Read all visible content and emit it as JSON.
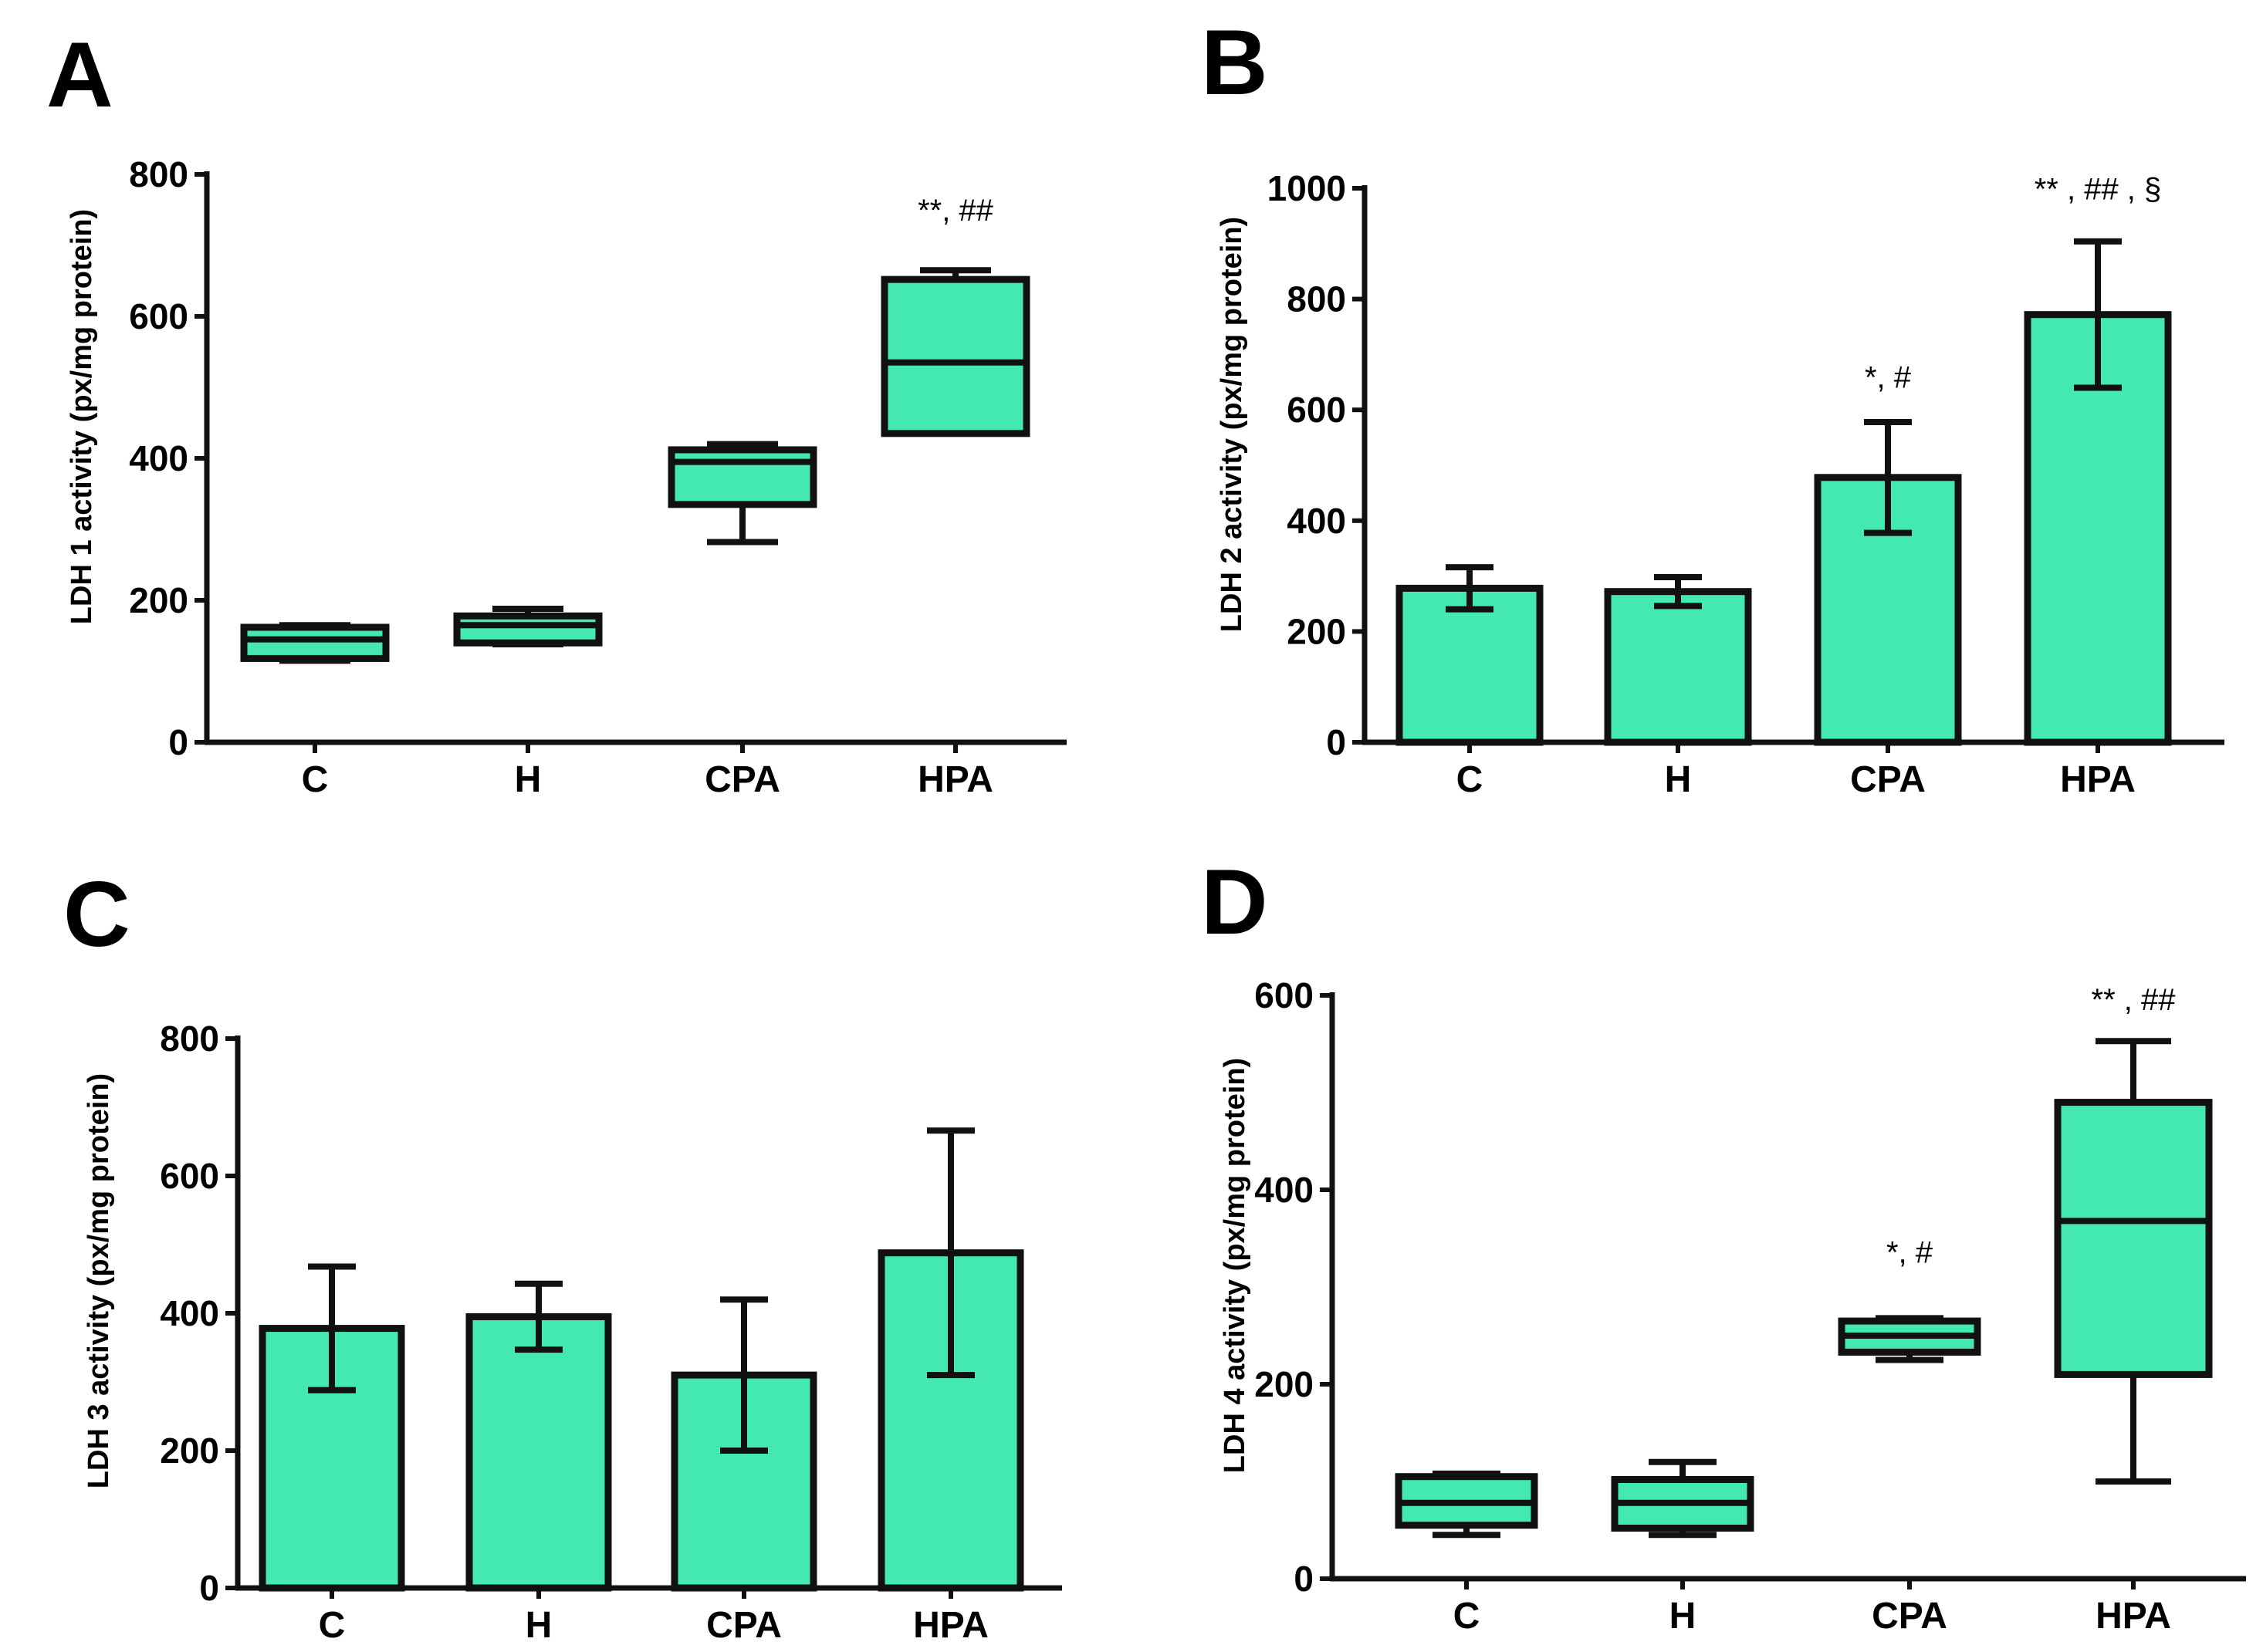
{
  "colors": {
    "fill": "#43E8B2",
    "stroke": "#111111"
  },
  "chart_data": [
    {
      "panel": "A",
      "type": "box",
      "ylabel": "LDH 1 activity (px/mg protein)",
      "ylim": [
        0,
        800
      ],
      "yticks": [
        0,
        200,
        400,
        600,
        800
      ],
      "categories": [
        "C",
        "H",
        "CPA",
        "HPA"
      ],
      "boxes": [
        {
          "min": 115,
          "q1": 118,
          "median": 145,
          "q3": 162,
          "max": 165
        },
        {
          "min": 138,
          "q1": 140,
          "median": 165,
          "q3": 178,
          "max": 188
        },
        {
          "min": 282,
          "q1": 335,
          "median": 395,
          "q3": 412,
          "max": 420
        },
        {
          "min": 435,
          "q1": 435,
          "median": 535,
          "q3": 652,
          "max": 665
        }
      ],
      "annotations": [
        {
          "category": "HPA",
          "text": "**, ##",
          "y": 735
        }
      ]
    },
    {
      "panel": "B",
      "type": "bar",
      "ylabel": "LDH 2 activity (px/mg protein)",
      "ylim": [
        0,
        1000
      ],
      "yticks": [
        0,
        200,
        400,
        600,
        800,
        1000
      ],
      "categories": [
        "C",
        "H",
        "CPA",
        "HPA"
      ],
      "values": [
        278,
        272,
        478,
        772
      ],
      "errors": [
        38,
        26,
        100,
        132
      ],
      "annotations": [
        {
          "category": "CPA",
          "text": "*, #",
          "y": 640
        },
        {
          "category": "HPA",
          "text": "** , ##  , §",
          "y": 980
        }
      ]
    },
    {
      "panel": "C",
      "type": "bar",
      "ylabel": "LDH 3 activity (px/mg protein)",
      "ylim": [
        0,
        800
      ],
      "yticks": [
        0,
        200,
        400,
        600,
        800
      ],
      "categories": [
        "C",
        "H",
        "CPA",
        "HPA"
      ],
      "values": [
        378,
        395,
        310,
        488
      ],
      "errors": [
        90,
        48,
        110,
        178
      ],
      "annotations": []
    },
    {
      "panel": "D",
      "type": "box",
      "ylabel": "LDH 4 activity (px/mg protein)",
      "ylim": [
        0,
        600
      ],
      "yticks": [
        0,
        200,
        400,
        600
      ],
      "categories": [
        "C",
        "H",
        "CPA",
        "HPA"
      ],
      "boxes": [
        {
          "min": 45,
          "q1": 55,
          "median": 78,
          "q3": 105,
          "max": 108
        },
        {
          "min": 45,
          "q1": 52,
          "median": 78,
          "q3": 102,
          "max": 120
        },
        {
          "min": 225,
          "q1": 233,
          "median": 250,
          "q3": 265,
          "max": 268
        },
        {
          "min": 100,
          "q1": 210,
          "median": 368,
          "q3": 490,
          "max": 553
        }
      ],
      "annotations": [
        {
          "category": "CPA",
          "text": "*, #",
          "y": 325
        },
        {
          "category": "HPA",
          "text": "** , ##",
          "y": 585
        }
      ]
    }
  ]
}
